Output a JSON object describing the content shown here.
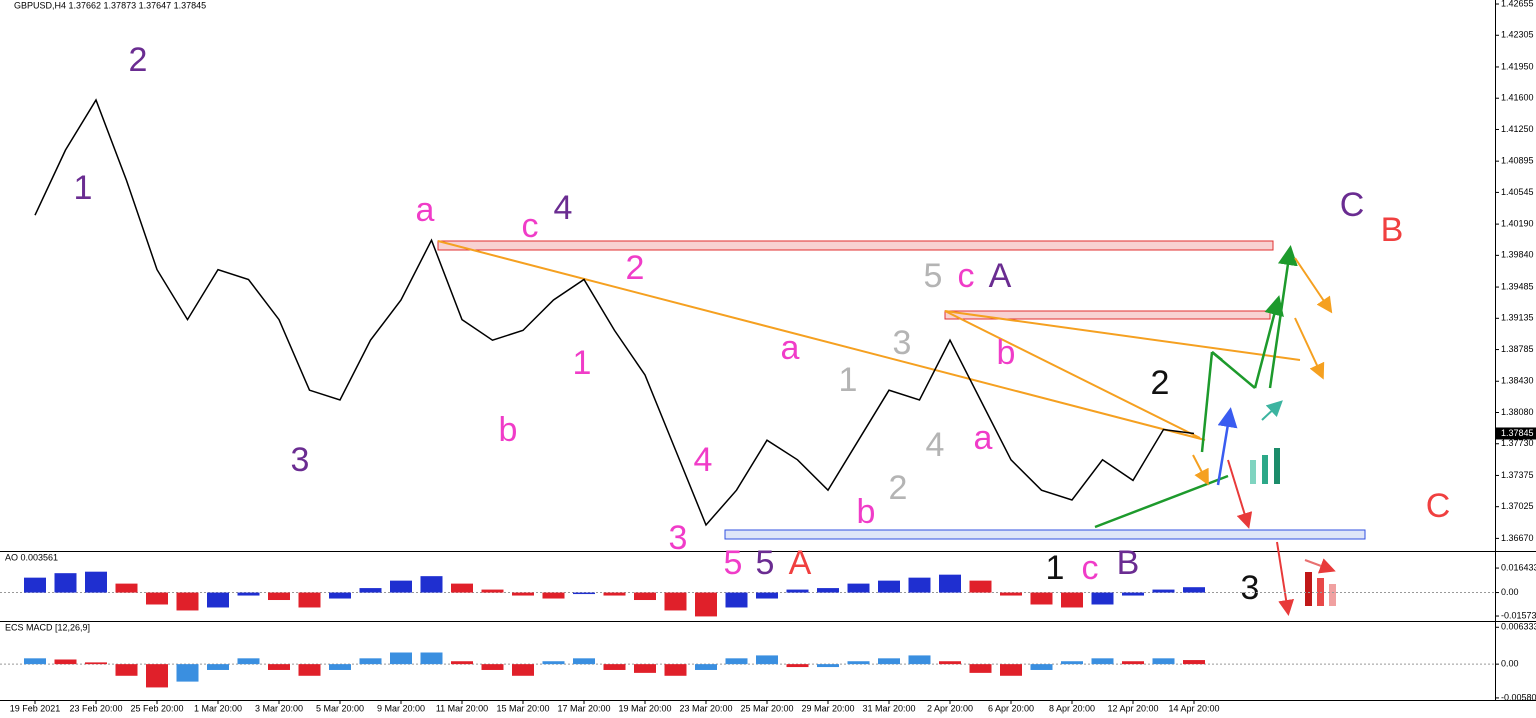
{
  "chart_data": [
    {
      "type": "line",
      "title": "GBPUSD,H4 1.37662 1.37873 1.37647 1.37845",
      "color": "#000000",
      "categories": [
        "19 Feb 2021",
        null,
        "23 Feb 20:00",
        null,
        "25 Feb 20:00",
        null,
        "1 Mar 20:00",
        null,
        "3 Mar 20:00",
        null,
        "5 Mar 20:00",
        null,
        "9 Mar 20:00",
        null,
        "11 Mar 20:00",
        null,
        "15 Mar 20:00",
        null,
        "17 Mar 20:00",
        null,
        "19 Mar 20:00",
        null,
        "23 Mar 20:00",
        null,
        "25 Mar 20:00",
        null,
        "29 Mar 20:00",
        null,
        "31 Mar 20:00",
        null,
        "2 Apr 20:00",
        null,
        "6 Apr 20:00",
        null,
        "8 Apr 20:00",
        null,
        "12 Apr 20:00",
        null,
        "14 Apr 20:00"
      ],
      "values": [
        1.4029,
        1.4102,
        1.4158,
        1.4068,
        1.3968,
        1.3912,
        1.3968,
        1.3957,
        1.3912,
        1.3833,
        1.3822,
        1.3889,
        1.3934,
        1.4001,
        1.3912,
        1.3889,
        1.39,
        1.3934,
        1.3957,
        1.39,
        1.385,
        1.3766,
        1.3682,
        1.3721,
        1.3777,
        1.3755,
        1.3721,
        1.3777,
        1.3833,
        1.3822,
        1.3889,
        1.3822,
        1.3755,
        1.3721,
        1.371,
        1.3755,
        1.3732,
        1.3789,
        1.37845
      ],
      "ylim": [
        1.3654,
        1.427
      ],
      "yticks": [
        {
          "value": 1.42655,
          "label": "1.42655"
        },
        {
          "value": 1.42305,
          "label": "1.42305"
        },
        {
          "value": 1.4195,
          "label": "1.41950"
        },
        {
          "value": 1.416,
          "label": "1.41600"
        },
        {
          "value": 1.4125,
          "label": "1.41250"
        },
        {
          "value": 1.40895,
          "label": "1.40895"
        },
        {
          "value": 1.40545,
          "label": "1.40545"
        },
        {
          "value": 1.4019,
          "label": "1.40190"
        },
        {
          "value": 1.3984,
          "label": "1.39840"
        },
        {
          "value": 1.39485,
          "label": "1.39485"
        },
        {
          "value": 1.39135,
          "label": "1.39135"
        },
        {
          "value": 1.38785,
          "label": "1.38785"
        },
        {
          "value": 1.3843,
          "label": "1.38430"
        },
        {
          "value": 1.3808,
          "label": "1.38080"
        },
        {
          "value": 1.3773,
          "label": "1.37730"
        },
        {
          "value": 1.37375,
          "label": "1.37375"
        },
        {
          "value": 1.37025,
          "label": "1.37025"
        },
        {
          "value": 1.3667,
          "label": "1.36670"
        }
      ],
      "last_price": 1.37845,
      "annotations": [
        {
          "text": "1",
          "color": "#6a2c91"
        },
        {
          "text": "2",
          "color": "#6a2c91"
        },
        {
          "text": "3",
          "color": "#6a2c91"
        },
        {
          "text": "a",
          "color": "#f03cc8"
        },
        {
          "text": "c",
          "color": "#f03cc8"
        },
        {
          "text": "4",
          "color": "#6a2c91"
        },
        {
          "text": "2",
          "color": "#f03cc8"
        },
        {
          "text": "b",
          "color": "#f03cc8"
        },
        {
          "text": "1",
          "color": "#f03cc8"
        },
        {
          "text": "4",
          "color": "#f03cc8"
        },
        {
          "text": "3",
          "color": "#f03cc8"
        },
        {
          "text": "5",
          "color": "#f03cc8"
        },
        {
          "text": "5",
          "color": "#6a2c91"
        },
        {
          "text": "A",
          "color": "#f04040"
        },
        {
          "text": "a",
          "color": "#f03cc8"
        },
        {
          "text": "b",
          "color": "#f03cc8"
        },
        {
          "text": "1",
          "color": "#b4b4b4"
        },
        {
          "text": "2",
          "color": "#b4b4b4"
        },
        {
          "text": "3",
          "color": "#b4b4b4"
        },
        {
          "text": "4",
          "color": "#b4b4b4"
        },
        {
          "text": "5",
          "color": "#b4b4b4"
        },
        {
          "text": "c",
          "color": "#f03cc8"
        },
        {
          "text": "A",
          "color": "#6a2c91"
        },
        {
          "text": "b",
          "color": "#f03cc8"
        },
        {
          "text": "a",
          "color": "#f03cc8"
        },
        {
          "text": "2",
          "color": "#111111"
        },
        {
          "text": "1",
          "color": "#111111"
        },
        {
          "text": "c",
          "color": "#f03cc8"
        },
        {
          "text": "B",
          "color": "#6a2c91"
        },
        {
          "text": "3",
          "color": "#111111"
        },
        {
          "text": "C",
          "color": "#6a2c91"
        },
        {
          "text": "B",
          "color": "#f04040"
        },
        {
          "text": "C",
          "color": "#f04040"
        }
      ]
    },
    {
      "type": "bar",
      "title": "AO 0.003561",
      "up_color": "#1f2fd0",
      "down_color": "#e0202a",
      "values": [
        0.01,
        0.013,
        0.014,
        0.006,
        -0.008,
        -0.012,
        -0.01,
        -0.002,
        -0.005,
        -0.01,
        -0.004,
        0.003,
        0.008,
        0.011,
        0.006,
        0.002,
        -0.002,
        -0.004,
        -0.001,
        -0.002,
        -0.005,
        -0.012,
        -0.016,
        -0.01,
        -0.004,
        0.002,
        0.003,
        0.006,
        0.008,
        0.01,
        0.012,
        0.008,
        -0.002,
        -0.008,
        -0.01,
        -0.008,
        -0.002,
        0.002,
        0.0036
      ],
      "ylim": [
        -0.0184,
        0.0272
      ],
      "yticks": [
        {
          "value": 0.016433,
          "label": "0.016433"
        },
        {
          "value": 0,
          "label": "0.00"
        },
        {
          "value": -0.015732,
          "label": "-0.015732"
        }
      ]
    },
    {
      "type": "bar",
      "title": "ECS MACD [12,26,9]",
      "up_color": "#3a8fe0",
      "down_color": "#e0202a",
      "values": [
        0.001,
        0.0008,
        0.0003,
        -0.002,
        -0.004,
        -0.003,
        -0.001,
        0.001,
        -0.001,
        -0.002,
        -0.001,
        0.001,
        0.002,
        0.002,
        0.0005,
        -0.001,
        -0.002,
        0.0005,
        0.001,
        -0.001,
        -0.0015,
        -0.002,
        -0.001,
        0.001,
        0.0015,
        -0.0005,
        -0.0005,
        0.0005,
        0.001,
        0.0015,
        0.0005,
        -0.0015,
        -0.002,
        -0.001,
        0.0005,
        0.001,
        0.0005,
        0.001,
        0.0007
      ],
      "ylim": [
        -0.00616,
        0.00724
      ],
      "yticks": [
        {
          "value": 0.006333,
          "label": "0.006333"
        },
        {
          "value": 0,
          "label": "0.00"
        },
        {
          "value": -0.005801,
          "label": "-0.005801"
        }
      ]
    }
  ]
}
